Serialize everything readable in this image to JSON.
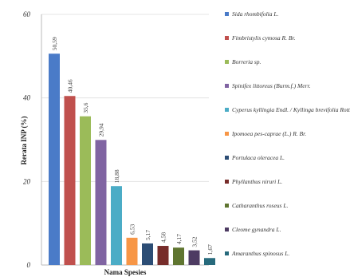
{
  "chart_data": {
    "type": "bar",
    "xlabel": "Nama Spesies",
    "ylabel": "Rerata INP (%)",
    "ylim": [
      0,
      60
    ],
    "yticks": [
      0,
      20,
      40,
      60
    ],
    "legend_position": "right",
    "categories": [
      "Sida rhombifolia L.",
      "Fimbristylis cymosa R. Br.",
      "Borreria sp.",
      "Spinifex littoreus (Burm.f.) Merr.",
      "Cyperus kyllingia Endl. / Kyllinga brevifolia Rottb.",
      "Ipomoea pes-caprae (L.) R. Br.",
      "Portulaca oleracea L.",
      "Phyllanthus niruri L.",
      "Catharanthus roseus L.",
      "Cleome gynandra L.",
      "Amaranthus spinosus L."
    ],
    "values": [
      50.59,
      40.46,
      35.6,
      29.94,
      18.88,
      6.53,
      5.17,
      4.58,
      4.17,
      3.52,
      1.67
    ],
    "value_labels": [
      "50,59",
      "40,46",
      "35,6",
      "29,94",
      "18,88",
      "6,53",
      "5,17",
      "4,58",
      "4,17",
      "3,52",
      "1,67"
    ],
    "colors": [
      "#4a7bc8",
      "#c0504d",
      "#9bbb59",
      "#8064a2",
      "#4bacc6",
      "#f79646",
      "#2c4d75",
      "#772c2a",
      "#5f7530",
      "#4d3b62",
      "#276a7c"
    ]
  }
}
